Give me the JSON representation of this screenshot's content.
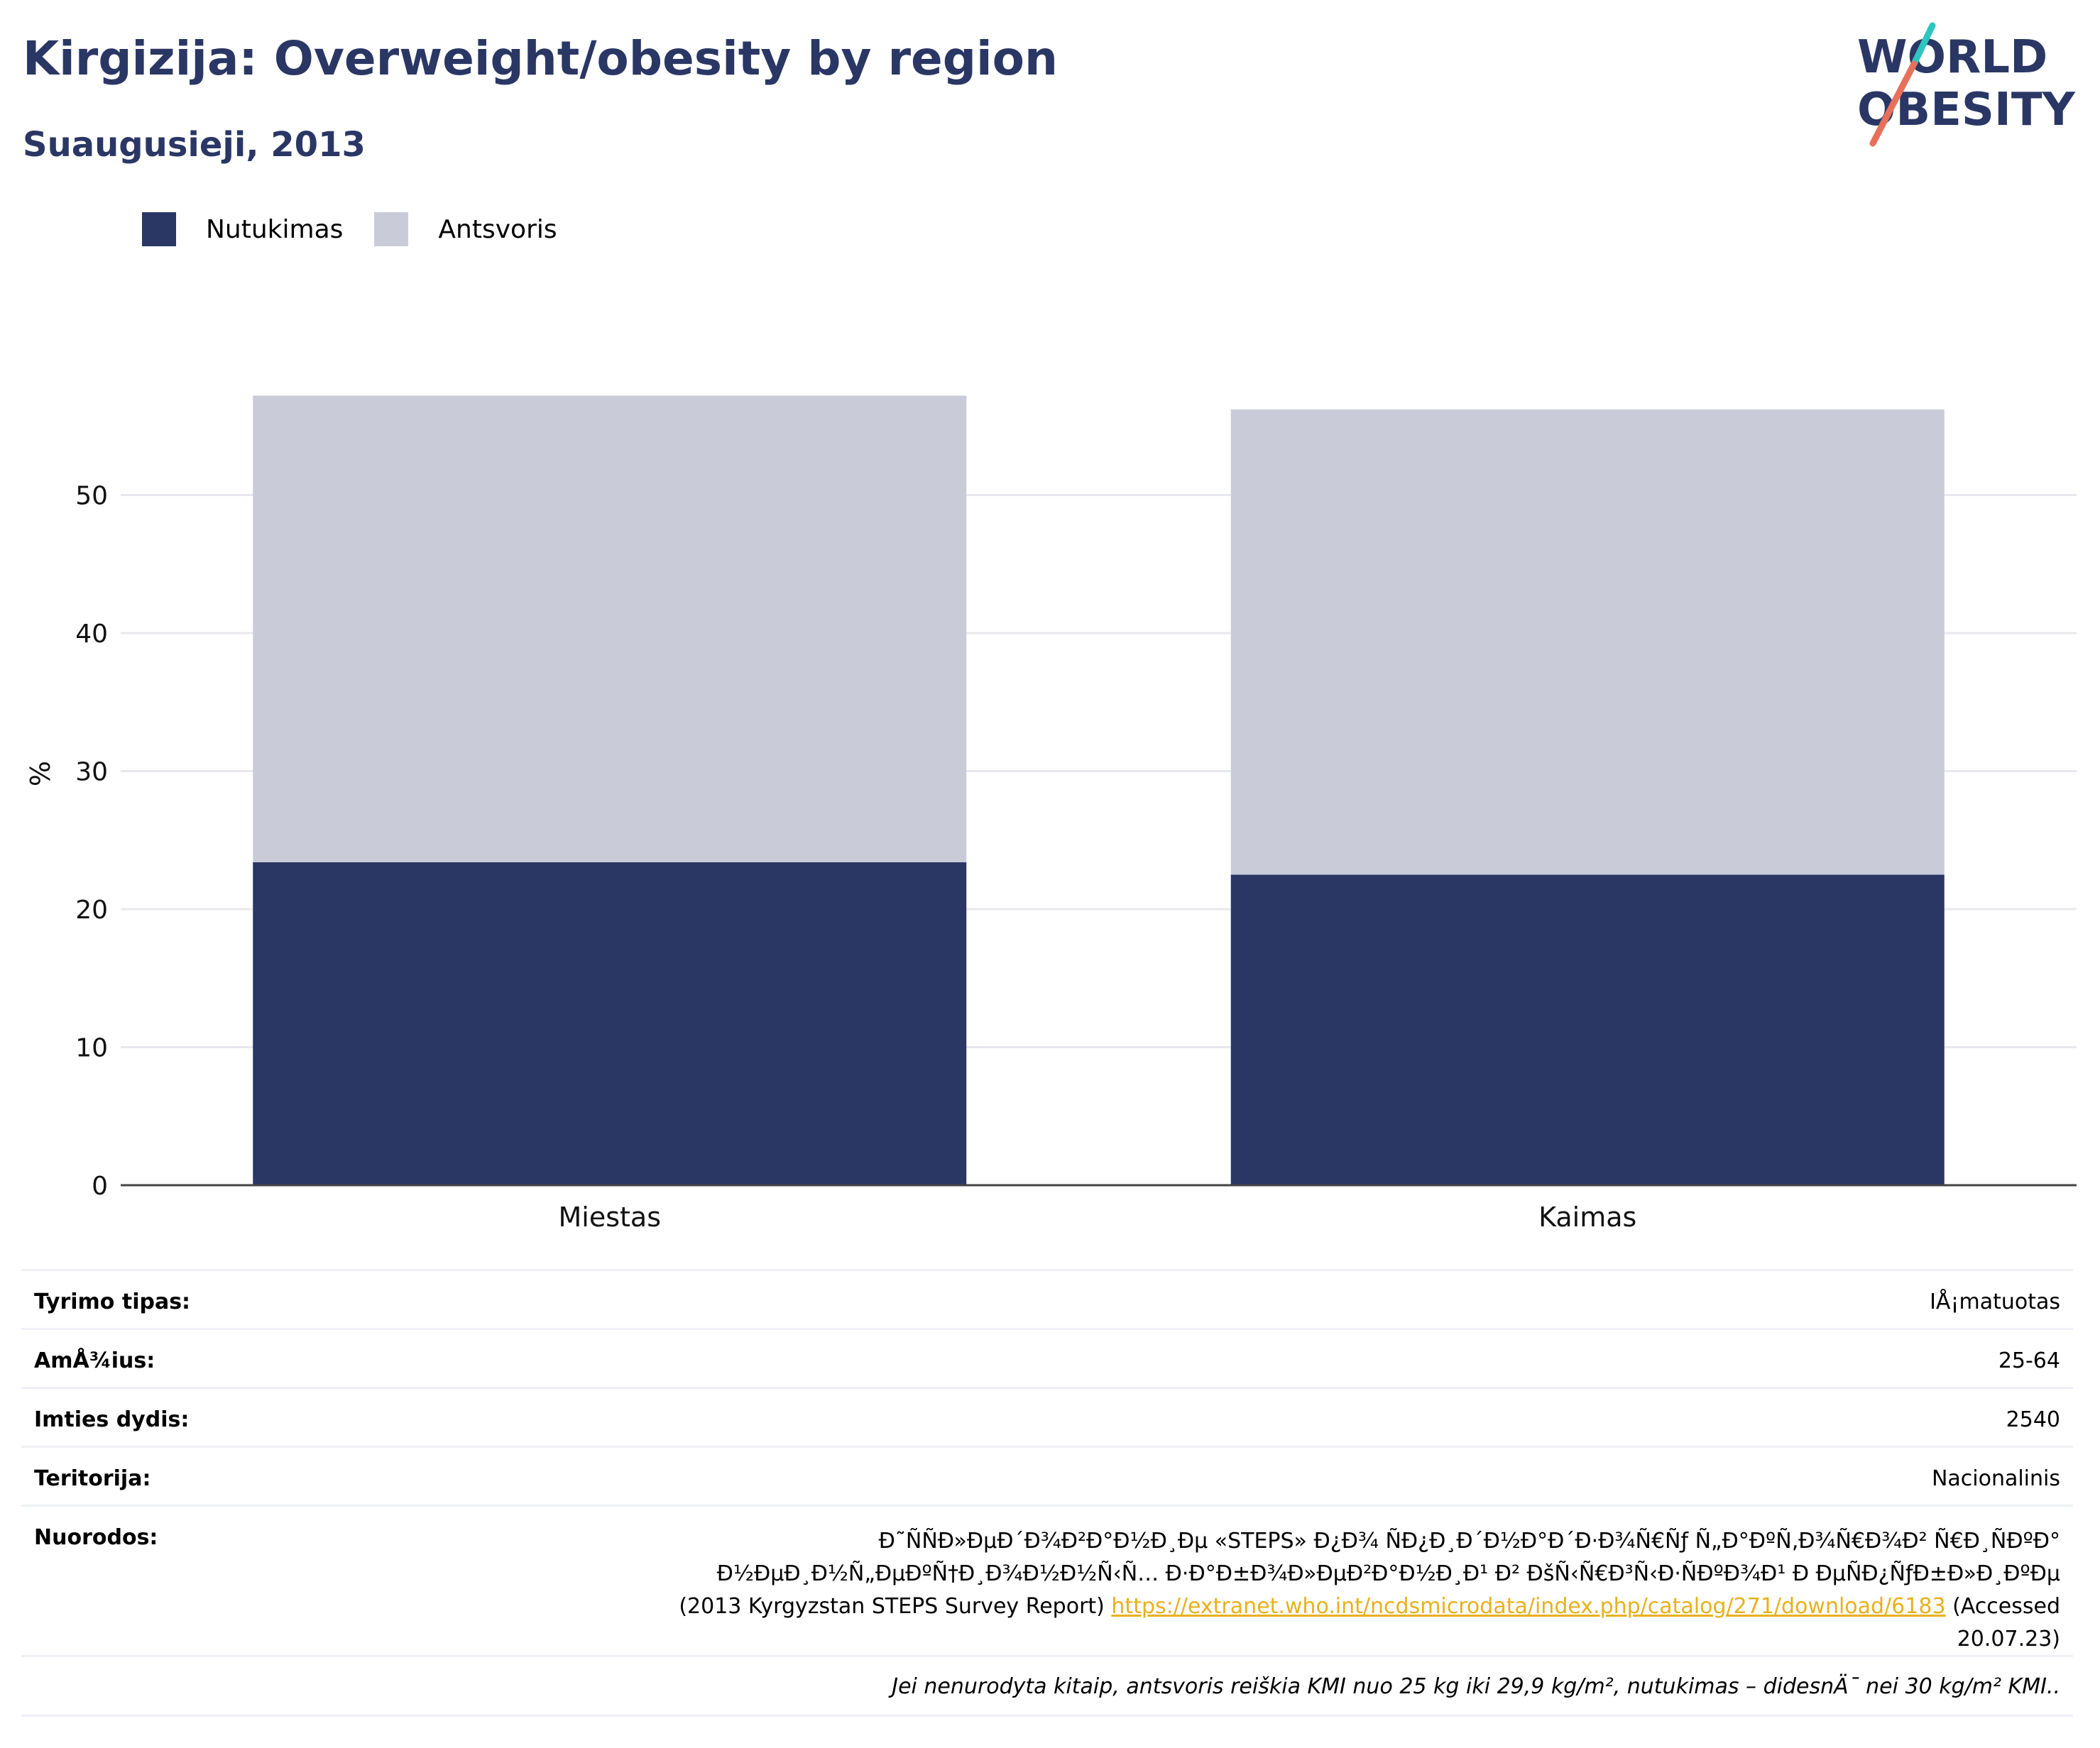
{
  "header": {
    "title": "Kirgizija: Overweight/obesity by region",
    "subtitle": "Suaugusieji, 2013",
    "logo_line1": "WORLD",
    "logo_line2": "OBESITY"
  },
  "colors": {
    "obesity": "#2a3765",
    "overweight": "#c9ccd8",
    "title": "#2a3765",
    "link": "#e8b11b",
    "logo_teal": "#2ec4c0",
    "logo_red": "#e8705a"
  },
  "legend": [
    {
      "label": "Nutukimas",
      "color": "#2a3765"
    },
    {
      "label": "Antsvoris",
      "color": "#c9ccd8"
    }
  ],
  "chart_data": {
    "type": "bar",
    "stacked": true,
    "categories": [
      "Miestas",
      "Kaimas"
    ],
    "series": [
      {
        "name": "Nutukimas",
        "values": [
          23.4,
          22.5
        ]
      },
      {
        "name": "Antsvoris",
        "values": [
          33.8,
          33.7
        ]
      }
    ],
    "ylabel": "%",
    "ylim": [
      0,
      60
    ],
    "yticks": [
      0,
      10,
      20,
      30,
      40,
      50
    ],
    "grid": true,
    "legend_position": "top-left"
  },
  "info": {
    "rows": [
      {
        "key": "Tyrimo tipas:",
        "value": "IÅ¡matuotas"
      },
      {
        "key": "AmÅ¾ius:",
        "value": "25-64"
      },
      {
        "key": "Imties dydis:",
        "value": "2540"
      },
      {
        "key": "Teritorija:",
        "value": "Nacionalinis"
      }
    ],
    "references_key": "Nuorodos:",
    "references_line1": "Ð˜ÑÑÐ»ÐµÐ´Ð¾Ð²Ð°Ð½Ð¸Ðµ «STEPS» Ð¿Ð¾ ÑÐ¿Ð¸Ð´Ð½Ð°Ð´Ð·Ð¾Ñ€Ñƒ Ñ„Ð°ÐºÑ‚Ð¾Ñ€Ð¾Ð² Ñ€Ð¸ÑÐºÐ°",
    "references_line2": "Ð½ÐµÐ¸Ð½Ñ„ÐµÐºÑ†Ð¸Ð¾Ð½Ð½Ñ‹Ñ… Ð·Ð°Ð±Ð¾Ð»ÐµÐ²Ð°Ð½Ð¸Ð¹ Ð² ÐšÑ‹Ñ€Ð³Ñ‹Ð·ÑÐºÐ¾Ð¹ Ð ÐµÑÐ¿ÑƒÐ±Ð»Ð¸ÐºÐµ",
    "references_pre": "(2013 Kyrgyzstan STEPS Survey Report)",
    "references_link": "https://extranet.who.int/ncdsmicrodata/index.php/catalog/271/download/6183",
    "references_post": "(Accessed 20.07.23)",
    "footnote": "Jei nenurodyta kitaip, antsvoris reiškia KMI nuo 25 kg iki 29,9 kg/m², nutukimas – didesnÄ¯ nei 30 kg/m² KMI.."
  }
}
